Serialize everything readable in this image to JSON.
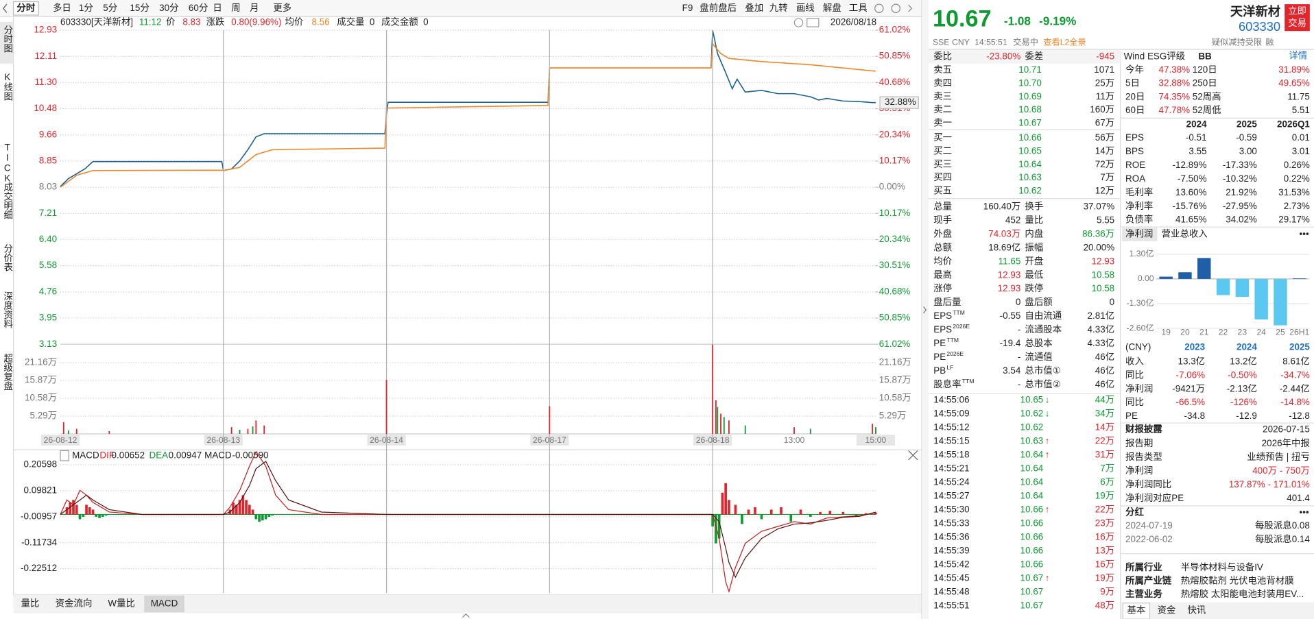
{
  "toolbar": {
    "tabs": [
      "分时",
      "多日",
      "1分",
      "5分",
      "15分",
      "30分",
      "60分",
      "日",
      "周",
      "月",
      "更多"
    ],
    "tools": [
      "F9",
      "盘前盘后",
      "叠加",
      "九转",
      "画线",
      "解盘",
      "工具"
    ]
  },
  "side_tabs": [
    "分时图",
    "K线图",
    "TICK",
    "成交明细",
    "分价表",
    "深度资料",
    "超级复盘"
  ],
  "info_bar": {
    "code": "603330[天洋新材]",
    "time": "11:12",
    "price_label": "价",
    "price": "8.83",
    "change_label": "涨跌",
    "change": "0.80(9.96%)",
    "avg_label": "均价",
    "avg": "8.56",
    "volume_label": "成交量",
    "volume": "0",
    "amount_label": "成交金额",
    "amount": "0",
    "date": "2026/08/18"
  },
  "chart_data": [
    {
      "type": "line",
      "last_label": "32.88%",
      "grid": true,
      "xlim": [
        0,
        5
      ],
      "ylim": [
        3.13,
        12.93
      ],
      "yticks": [
        12.93,
        12.11,
        {
          "value": 11.3,
          "label": "11.30"
        },
        10.48,
        9.66,
        8.85,
        8.03,
        7.21,
        {
          "value": 6.4,
          "label": "6.40"
        },
        5.58,
        4.76,
        3.95,
        3.13
      ],
      "y2lim": [
        -61.02,
        61.02
      ],
      "y2ticks": [
        {
          "value": 61.02,
          "label": "61.02%"
        },
        {
          "value": 50.85,
          "label": "50.85%"
        },
        {
          "value": 40.68,
          "label": "40.68%"
        },
        {
          "value": 30.51,
          "label": "30.51%"
        },
        {
          "value": 20.34,
          "label": "20.34%"
        },
        {
          "value": 10.17,
          "label": "10.17%"
        },
        {
          "value": 0,
          "label": "0.00%"
        },
        {
          "value": -10.17,
          "label": "10.17%"
        },
        {
          "value": -20.34,
          "label": "20.34%"
        },
        {
          "value": -30.51,
          "label": "30.51%"
        },
        {
          "value": -40.68,
          "label": "40.68%"
        },
        {
          "value": -50.85,
          "label": "50.85%"
        },
        {
          "value": -61.02,
          "label": "61.02%"
        }
      ],
      "series": [
        {
          "name": "价",
          "color": "#1c5f8e",
          "x": [
            0,
            0.05,
            0.1,
            0.15,
            0.2,
            0.5,
            0.99,
            1,
            1.05,
            1.1,
            1.15,
            1.2,
            1.25,
            1.99,
            2,
            2.01,
            2.99,
            3,
            3.99,
            4,
            4.03,
            4.08,
            4.12,
            4.15,
            4.2,
            4.3,
            4.4,
            4.5,
            4.6,
            4.65,
            4.7,
            4.8,
            4.9,
            4.98,
            5
          ],
          "values": [
            8.05,
            8.3,
            8.45,
            8.6,
            8.83,
            8.83,
            8.83,
            8.55,
            8.6,
            8.85,
            9.2,
            9.6,
            9.7,
            9.7,
            10.3,
            10.68,
            10.68,
            11.75,
            11.75,
            12.93,
            12.2,
            11.6,
            11.1,
            11.4,
            11.0,
            11.05,
            10.95,
            10.95,
            10.85,
            10.75,
            10.8,
            10.72,
            10.7,
            10.67,
            10.67
          ]
        },
        {
          "name": "均价",
          "color": "#f0862a",
          "x": [
            0,
            0.1,
            0.2,
            0.99,
            1,
            1.1,
            1.2,
            1.3,
            1.99,
            2,
            2.99,
            3,
            3.99,
            4,
            4.05,
            4.1,
            4.3,
            4.6,
            5
          ],
          "values": [
            8.03,
            8.4,
            8.55,
            8.56,
            8.55,
            8.65,
            9.05,
            9.2,
            9.25,
            10.5,
            10.58,
            11.75,
            11.75,
            12.5,
            12.2,
            12.05,
            11.95,
            11.85,
            11.65
          ]
        }
      ]
    },
    {
      "type": "bar",
      "xlim": [
        0,
        5
      ],
      "ylim": [
        0,
        26.6
      ],
      "yticks": [
        {
          "value": 21.16,
          "label": "21.16万"
        },
        {
          "value": 15.87,
          "label": "15.87万"
        },
        {
          "value": 10.58,
          "label": "10.58万"
        },
        {
          "value": 5.29,
          "label": "5.29万"
        }
      ],
      "xticks": [
        {
          "value": 0,
          "label": "26-08-12"
        },
        {
          "value": 1,
          "label": "26-08-13"
        },
        {
          "value": 2,
          "label": "26-08-14"
        },
        {
          "value": 3,
          "label": "26-08-17"
        },
        {
          "value": 4,
          "label": "26-08-18"
        },
        {
          "value": 4.5,
          "label": "13:00"
        },
        {
          "value": 5,
          "label": "15:00"
        }
      ],
      "series": [
        {
          "name": "up",
          "color": "#e3242b",
          "x": [
            0.02,
            0.1,
            0.3,
            1.05,
            1.15,
            1.2,
            1.25,
            2,
            3,
            4,
            4.02,
            4.05,
            4.1,
            4.5,
            4.98
          ],
          "values": [
            3.5,
            1.5,
            0.8,
            2,
            1.5,
            4,
            2.5,
            16,
            8.2,
            26.5,
            10,
            6,
            4,
            2,
            3
          ]
        },
        {
          "name": "down",
          "color": "#109a32",
          "x": [
            0.05,
            1.1,
            1.18,
            4.03,
            4.07,
            4.2,
            4.6,
            5
          ],
          "values": [
            1,
            1.2,
            2.2,
            8,
            5,
            2.5,
            1.5,
            2
          ]
        }
      ]
    },
    {
      "type": "combo",
      "title": "MACD",
      "xlim": [
        0,
        5
      ],
      "ylim": [
        -0.326,
        0.268
      ],
      "yticks": [
        0.20598,
        0.09821,
        -0.00957,
        -0.11734,
        -0.22512
      ],
      "readouts": [
        {
          "label": "DIF",
          "value": "0.00652",
          "color": "#e3242b"
        },
        {
          "label": "DEA",
          "value": "0.00947",
          "color": "#109a32"
        },
        {
          "label": "MACD",
          "value": "-0.00590",
          "color": "#222222"
        }
      ],
      "histogram": {
        "up_color": "#e3242b",
        "down_color": "#109a32",
        "x": [
          0.04,
          0.06,
          0.08,
          0.1,
          0.12,
          0.14,
          0.16,
          0.18,
          0.2,
          0.22,
          0.24,
          0.26,
          0.28,
          1.04,
          1.06,
          1.08,
          1.1,
          1.12,
          1.14,
          1.16,
          1.18,
          1.2,
          1.22,
          1.24,
          1.26,
          1.28,
          1.3,
          4.0,
          4.02,
          4.04,
          4.06,
          4.08,
          4.1,
          4.14,
          4.18,
          4.22,
          4.26,
          4.3,
          4.36,
          4.42,
          4.48,
          4.54,
          4.6,
          4.66,
          4.72,
          4.8,
          4.88,
          4.94,
          5.0
        ],
        "values": [
          0.03,
          0.05,
          0.06,
          0.04,
          -0.02,
          -0.01,
          0.04,
          0.03,
          0.02,
          -0.01,
          -0.015,
          -0.01,
          -0.005,
          0.02,
          0.05,
          0.04,
          0.06,
          0.08,
          0.06,
          0.04,
          0.02,
          -0.02,
          -0.03,
          -0.025,
          -0.02,
          -0.01,
          -0.005,
          -0.05,
          -0.12,
          -0.1,
          0.09,
          0.13,
          0.06,
          0.04,
          -0.04,
          0.02,
          0.03,
          -0.02,
          0.02,
          0.03,
          -0.03,
          0.02,
          -0.01,
          0.01,
          0.015,
          0.01,
          -0.005,
          0.005,
          0.008
        ]
      },
      "series": [
        {
          "name": "DIF",
          "color": "#c81e1e",
          "x": [
            0,
            0.04,
            0.08,
            0.12,
            0.16,
            0.2,
            0.3,
            0.5,
            1,
            1.04,
            1.1,
            1.16,
            1.2,
            1.26,
            1.32,
            1.4,
            1.6,
            2,
            3,
            4,
            4.04,
            4.08,
            4.1,
            4.14,
            4.2,
            4.3,
            4.4,
            4.5,
            4.6,
            4.7,
            4.8,
            4.9,
            5
          ],
          "values": [
            0,
            0.06,
            0.04,
            0.1,
            0.08,
            0.05,
            0.01,
            0,
            0,
            0.03,
            0.1,
            0.2,
            0.26,
            0.2,
            0.08,
            0.02,
            0,
            0,
            0,
            0,
            -0.1,
            -0.28,
            -0.32,
            -0.22,
            -0.12,
            -0.07,
            -0.05,
            -0.03,
            -0.04,
            -0.015,
            -0.01,
            -0.005,
            0.0065
          ]
        },
        {
          "name": "DEA",
          "color": "#5a1010",
          "x": [
            0,
            0.04,
            0.08,
            0.12,
            0.16,
            0.2,
            0.3,
            0.5,
            1,
            1.04,
            1.1,
            1.16,
            1.2,
            1.26,
            1.32,
            1.4,
            1.6,
            2,
            3,
            4,
            4.04,
            4.08,
            4.1,
            4.14,
            4.2,
            4.3,
            4.4,
            4.5,
            4.6,
            4.7,
            4.8,
            4.9,
            5
          ],
          "values": [
            0,
            0.02,
            0.04,
            0.06,
            0.08,
            0.06,
            0.02,
            0,
            0,
            0.01,
            0.05,
            0.12,
            0.19,
            0.22,
            0.14,
            0.06,
            0.01,
            0,
            0,
            0,
            -0.03,
            -0.14,
            -0.2,
            -0.26,
            -0.18,
            -0.1,
            -0.06,
            -0.04,
            -0.035,
            -0.025,
            -0.012,
            -0.008,
            0.0095
          ]
        }
      ]
    },
    {
      "type": "bar",
      "tabs": [
        "净利润",
        "营业总收入"
      ],
      "more": "•••",
      "categories": [
        "19",
        "20",
        "21",
        "22",
        "23",
        "24",
        "25",
        "26H1"
      ],
      "values": [
        0.12,
        0.35,
        1.1,
        -0.85,
        -0.9421,
        -2.13,
        -2.44,
        0.03
      ],
      "color": "#1f5fa8",
      "negative_color": "#5bc8f2",
      "ylim": [
        -2.73,
        1.63
      ],
      "yticks": [
        {
          "value": 1.3,
          "label": "1.30亿"
        },
        {
          "value": 0,
          "label": "0.00"
        },
        {
          "value": -1.3,
          "label": "-1.30亿"
        },
        {
          "value": -2.6,
          "label": "-2.60亿"
        }
      ]
    }
  ],
  "bottom_tabs": [
    "量比",
    "资金流向",
    "W量比",
    "MACD"
  ],
  "quote": {
    "price": "10.67",
    "change": "-1.08",
    "change_pct": "-9.19%",
    "name": "天洋新材",
    "code": "603330",
    "trade_button": [
      "立即",
      "交易"
    ],
    "exchange": "SSE",
    "currency": "CNY",
    "time": "14:55:51",
    "status": "交易中",
    "l2_link": "查看L2全景",
    "restriction": "疑似减持受限",
    "margin": "融"
  },
  "order_book": {
    "ratio_label": "委比",
    "ratio": "-23.80%",
    "diff_label": "委差",
    "diff": "-945",
    "price_color": "green",
    "rows": [
      [
        "卖五",
        "10.71",
        "1071"
      ],
      [
        "卖四",
        "10.70",
        "25万"
      ],
      [
        "卖三",
        "10.69",
        "11万"
      ],
      [
        "卖二",
        "10.68",
        "160万"
      ],
      [
        "卖一",
        "10.67",
        "67万"
      ],
      [
        "买一",
        "10.66",
        "56万"
      ],
      [
        "买二",
        "10.65",
        "14万"
      ],
      [
        "买三",
        "10.64",
        "72万"
      ],
      [
        "买四",
        "10.63",
        "7万"
      ],
      [
        "买五",
        "10.62",
        "12万"
      ]
    ]
  },
  "stats": [
    {
      "l1": "总量",
      "v1": "160.40万",
      "l2": "换手",
      "v2": "37.07%"
    },
    {
      "l1": "现手",
      "v1": "452",
      "l2": "量比",
      "v2": "5.55"
    },
    {
      "l1": "外盘",
      "v1": "74.03万",
      "c1": "red",
      "l2": "内盘",
      "v2": "86.36万",
      "c2": "green"
    },
    {
      "l1": "总额",
      "v1": "18.69亿",
      "l2": "振幅",
      "v2": "20.00%"
    },
    {
      "l1": "均价",
      "v1": "11.65",
      "c1": "green",
      "l2": "开盘",
      "v2": "12.93",
      "c2": "red"
    },
    {
      "l1": "最高",
      "v1": "12.93",
      "c1": "red",
      "l2": "最低",
      "v2": "10.58",
      "c2": "green"
    },
    {
      "l1": "涨停",
      "v1": "12.93",
      "c1": "red",
      "l2": "跌停",
      "v2": "10.58",
      "c2": "green"
    },
    {
      "l1": "盘后量",
      "v1": "0",
      "l2": "盘后额",
      "v2": "0"
    },
    {
      "l1": "EPS",
      "s1": "TTM",
      "v1": "-0.55",
      "l2": "自由流通",
      "v2": "2.81亿"
    },
    {
      "l1": "EPS",
      "s1": "2026E",
      "v1": "-",
      "l2": "流通股本",
      "v2": "4.33亿"
    },
    {
      "l1": "PE",
      "s1": "TTM",
      "v1": "-19.4",
      "l2": "总股本",
      "v2": "4.33亿"
    },
    {
      "l1": "PE",
      "s1": "2026E",
      "v1": "-",
      "l2": "流通值",
      "v2": "46亿"
    },
    {
      "l1": "PB",
      "s1": "LF",
      "v1": "3.54",
      "l2": "总市值①",
      "v2": "46亿"
    },
    {
      "l1": "股息率",
      "s1": "TTM",
      "v1": "-",
      "l2": "总市值②",
      "v2": "46亿"
    }
  ],
  "trades": [
    {
      "time": "14:55:06",
      "price": "10.65",
      "arrow": "↓",
      "vol": "44万",
      "color": "green"
    },
    {
      "time": "14:55:09",
      "price": "10.62",
      "arrow": "↓",
      "vol": "34万",
      "color": "green"
    },
    {
      "time": "14:55:12",
      "price": "10.62",
      "vol": "14万",
      "color": "red"
    },
    {
      "time": "14:55:15",
      "price": "10.63",
      "arrow": "↑",
      "vol": "22万",
      "color": "red"
    },
    {
      "time": "14:55:18",
      "price": "10.64",
      "arrow": "↑",
      "vol": "31万",
      "color": "red"
    },
    {
      "time": "14:55:21",
      "price": "10.64",
      "vol": "7万",
      "color": "green"
    },
    {
      "time": "14:55:24",
      "price": "10.64",
      "vol": "6万",
      "color": "green"
    },
    {
      "time": "14:55:27",
      "price": "10.64",
      "vol": "19万",
      "color": "green"
    },
    {
      "time": "14:55:30",
      "price": "10.66",
      "arrow": "↑",
      "vol": "22万",
      "color": "red"
    },
    {
      "time": "14:55:33",
      "price": "10.66",
      "vol": "23万",
      "color": "red"
    },
    {
      "time": "14:55:36",
      "price": "10.66",
      "vol": "16万",
      "color": "red"
    },
    {
      "time": "14:55:39",
      "price": "10.66",
      "vol": "13万",
      "color": "red"
    },
    {
      "time": "14:55:42",
      "price": "10.66",
      "vol": "16万",
      "color": "red"
    },
    {
      "time": "14:55:45",
      "price": "10.67",
      "arrow": "↑",
      "vol": "19万",
      "color": "red"
    },
    {
      "time": "14:55:48",
      "price": "10.67",
      "vol": "9万",
      "color": "red"
    },
    {
      "time": "14:55:51",
      "price": "10.67",
      "vol": "48万",
      "color": "red"
    }
  ],
  "esg": {
    "label": "Wind ESG评级",
    "rating": "BB",
    "link": "详情"
  },
  "returns": [
    [
      "今年",
      "47.38%",
      "120日",
      "31.89%"
    ],
    [
      "5日",
      "32.88%",
      "250日",
      "49.65%"
    ],
    [
      "20日",
      "74.35%",
      "52周高",
      "11.75"
    ],
    [
      "60日",
      "47.78%",
      "52周低",
      "5.51"
    ]
  ],
  "fin_table": {
    "header": [
      "2024",
      "2025",
      "2026Q1"
    ],
    "rows": [
      [
        "EPS",
        "-0.51",
        "-0.59",
        "0.01"
      ],
      [
        "BPS",
        "3.55",
        "3.00",
        "3.01"
      ],
      [
        "ROE",
        "-12.89%",
        "-17.33%",
        "0.26%"
      ],
      [
        "ROA",
        "-7.50%",
        "-10.32%",
        "0.22%"
      ],
      [
        "毛利率",
        "13.60%",
        "21.92%",
        "31.53%"
      ],
      [
        "净利率",
        "-15.76%",
        "-27.95%",
        "2.73%"
      ],
      [
        "负债率",
        "41.65%",
        "34.02%",
        "29.17%"
      ]
    ]
  },
  "income_table": {
    "header": [
      "(CNY)",
      "2023",
      "2024",
      "2025"
    ],
    "rows": [
      {
        "cells": [
          "收入",
          "13.3亿",
          "13.2亿",
          "8.61亿"
        ]
      },
      {
        "cells": [
          "同比",
          "-7.06%",
          "-0.50%",
          "-34.7%"
        ],
        "color": "red"
      },
      {
        "cells": [
          "净利润",
          "-9421万",
          "-2.13亿",
          "-2.44亿"
        ]
      },
      {
        "cells": [
          "同比",
          "-66.5%",
          "-126%",
          "-14.8%"
        ],
        "color": "red"
      },
      {
        "cells": [
          "PE",
          "-34.8",
          "-12.9",
          "-12.8"
        ]
      }
    ]
  },
  "report": {
    "title": "财报披露",
    "date": "2026-07-15",
    "rows": [
      {
        "cells": [
          "报告期",
          "2026年中报"
        ]
      },
      {
        "cells": [
          "报告类型",
          "业绩预告 | 扭亏"
        ]
      },
      {
        "cells": [
          "净利润",
          "400万 - 750万"
        ],
        "color": "red"
      },
      {
        "cells": [
          "净利润同比",
          "137.87% - 171.01%"
        ],
        "color": "red"
      },
      {
        "cells": [
          "净利润对应PE",
          "401.4"
        ]
      }
    ]
  },
  "dividend": {
    "title": "分红",
    "more": "•••",
    "rows": [
      [
        "2024-07-19",
        "每股派息0.08"
      ],
      [
        "2022-06-02",
        "每股派息0.14"
      ]
    ]
  },
  "company": [
    [
      "所属行业",
      "半导体材料与设备IV"
    ],
    [
      "所属产业链",
      "热熔胶黏剂  光伏电池背材膜"
    ],
    [
      "主营业务",
      "热熔胶  太阳能电池封装用EV..."
    ]
  ],
  "bottom_right_tabs": [
    "基本",
    "资金",
    "快讯"
  ]
}
